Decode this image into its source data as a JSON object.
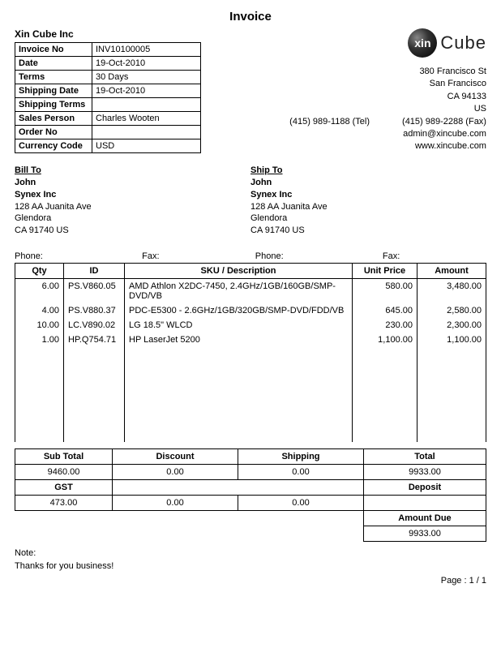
{
  "title": "Invoice",
  "vendor": {
    "name": "Xin Cube Inc",
    "logo_abbrev": "xin",
    "logo_word": "Cube",
    "address": [
      "380 Francisco St",
      "San Francisco",
      "CA 94133",
      "US"
    ],
    "tel": "(415) 989-1188 (Tel)",
    "fax": "(415) 989-2288 (Fax)",
    "email": "admin@xincube.com",
    "web": "www.xincube.com"
  },
  "details": {
    "labels": {
      "invoice_no": "Invoice No",
      "date": "Date",
      "terms": "Terms",
      "shipping_date": "Shipping Date",
      "shipping_terms": "Shipping Terms",
      "sales_person": "Sales Person",
      "order_no": "Order No",
      "currency_code": "Currency Code"
    },
    "values": {
      "invoice_no": "INV10100005",
      "date": "19-Oct-2010",
      "terms": "30 Days",
      "shipping_date": "19-Oct-2010",
      "shipping_terms": "",
      "sales_person": "Charles Wooten",
      "order_no": "",
      "currency_code": "USD"
    }
  },
  "bill_to": {
    "title": "Bill To",
    "name": "John",
    "company": "Synex Inc",
    "lines": [
      "128 AA Juanita Ave",
      "Glendora",
      "CA 91740 US"
    ]
  },
  "ship_to": {
    "title": "Ship To",
    "name": "John",
    "company": "Synex Inc",
    "lines": [
      "128 AA Juanita Ave",
      "Glendora",
      "CA 91740 US"
    ]
  },
  "phone_fax": {
    "phone1_lbl": "Phone:",
    "fax1_lbl": "Fax:",
    "phone2_lbl": "Phone:",
    "fax2_lbl": "Fax:"
  },
  "items": {
    "headers": {
      "qty": "Qty",
      "id": "ID",
      "desc": "SKU / Description",
      "unit_price": "Unit Price",
      "amount": "Amount"
    },
    "rows": [
      {
        "qty": "6.00",
        "id": "PS.V860.05",
        "desc": "AMD Athlon X2DC-7450, 2.4GHz/1GB/160GB/SMP-DVD/VB",
        "unit_price": "580.00",
        "amount": "3,480.00"
      },
      {
        "qty": "4.00",
        "id": "PS.V880.37",
        "desc": "PDC-E5300 - 2.6GHz/1GB/320GB/SMP-DVD/FDD/VB",
        "unit_price": "645.00",
        "amount": "2,580.00"
      },
      {
        "qty": "10.00",
        "id": "LC.V890.02",
        "desc": "LG 18.5\" WLCD",
        "unit_price": "230.00",
        "amount": "2,300.00"
      },
      {
        "qty": "1.00",
        "id": "HP.Q754.71",
        "desc": "HP LaserJet 5200",
        "unit_price": "1,100.00",
        "amount": "1,100.00"
      }
    ]
  },
  "totals": {
    "labels": {
      "sub_total": "Sub Total",
      "discount": "Discount",
      "shipping": "Shipping",
      "total": "Total",
      "gst": "GST",
      "deposit": "Deposit",
      "amount_due": "Amount Due"
    },
    "values": {
      "sub_total": "9460.00",
      "discount": "0.00",
      "shipping": "0.00",
      "total": "9933.00",
      "gst": "473.00",
      "gst_discount": "0.00",
      "gst_shipping": "0.00",
      "deposit": "",
      "amount_due": "9933.00"
    }
  },
  "note": {
    "label": "Note:",
    "text": "Thanks for you business!"
  },
  "page": "Page : 1 / 1"
}
